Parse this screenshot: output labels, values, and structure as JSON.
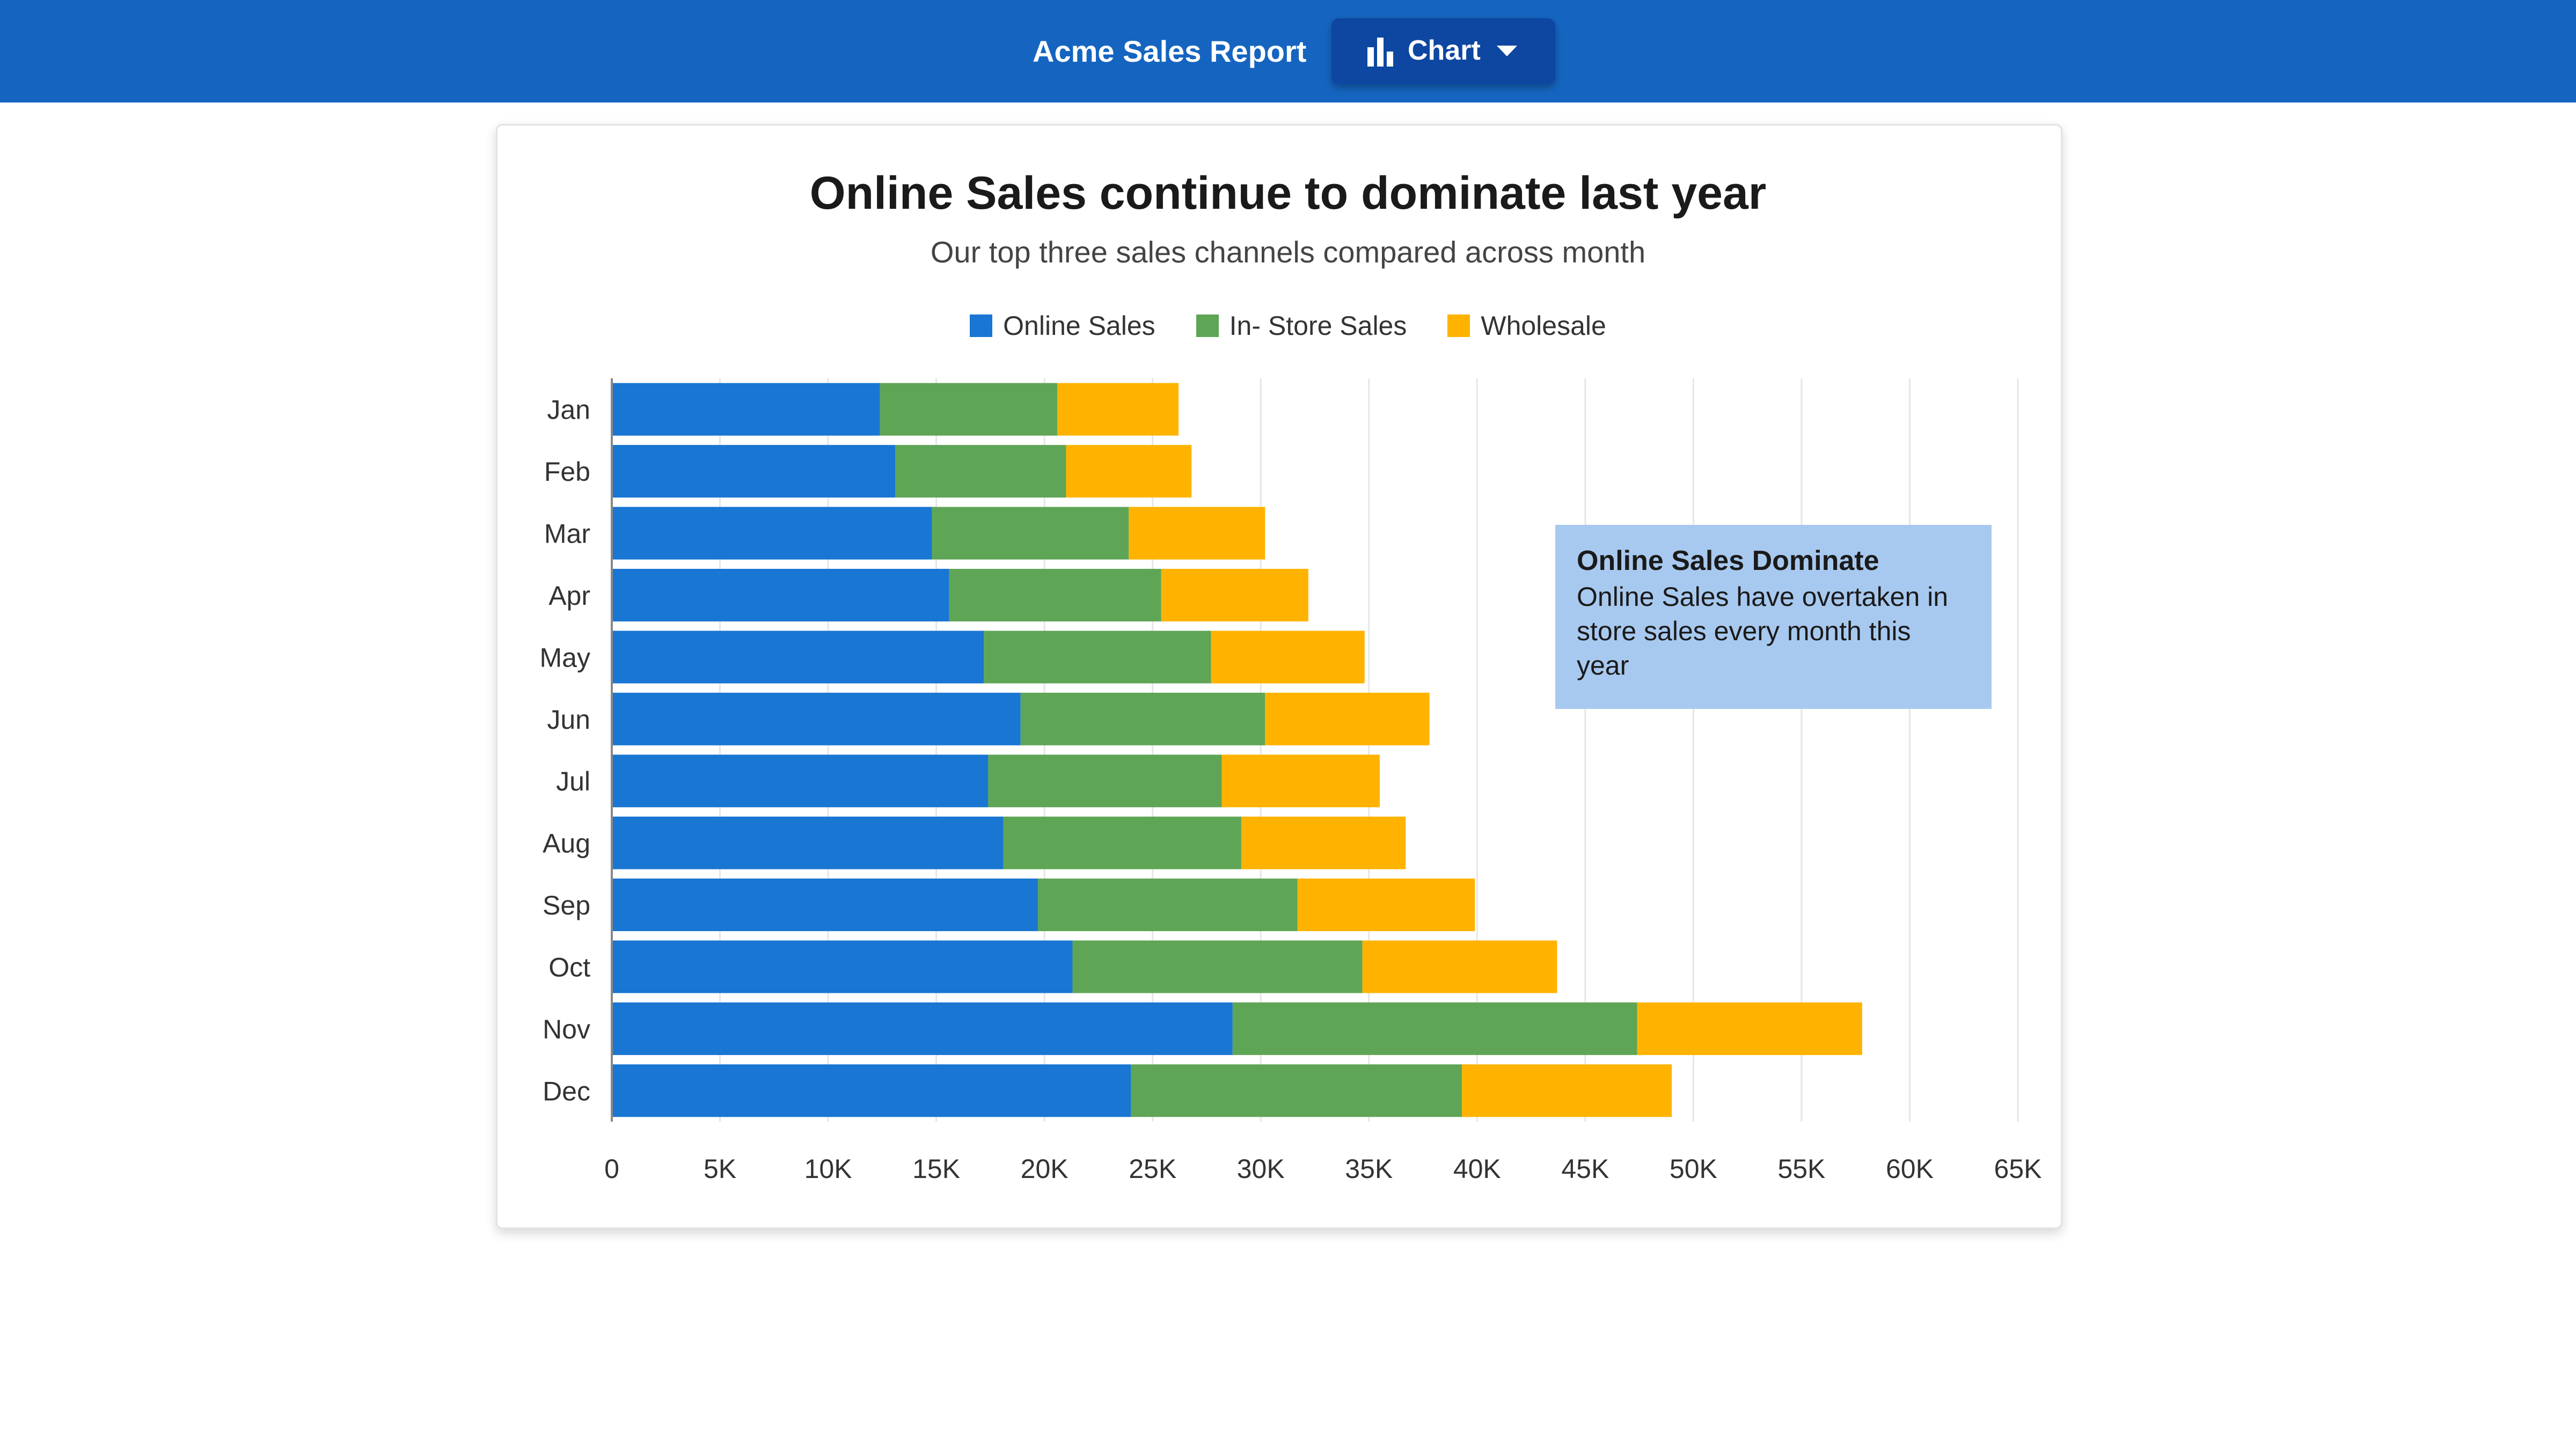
{
  "header": {
    "app_title": "Acme Sales Report",
    "chart_button_label": "Chart",
    "chart_button_icon": "bar-chart-icon",
    "dropdown_icon": "caret-down-icon"
  },
  "colors": {
    "header_bg": "#1565c0",
    "button_bg": "#0d47a1",
    "online": "#1976d2",
    "instore": "#5fa556",
    "wholesale": "#ffb300",
    "annotation_bg": "#a8c9ef"
  },
  "chart_data": {
    "type": "bar",
    "orientation": "horizontal",
    "stacked": true,
    "title": "Online Sales continue to dominate last year",
    "subtitle": "Our top three sales channels compared across month",
    "legend_position": "top",
    "grid": true,
    "categories": [
      "Jan",
      "Feb",
      "Mar",
      "Apr",
      "May",
      "Jun",
      "Jul",
      "Aug",
      "Sep",
      "Oct",
      "Nov",
      "Dec"
    ],
    "series": [
      {
        "name": "Online Sales",
        "color": "#1976d2",
        "values": [
          12400,
          13100,
          14800,
          15600,
          17200,
          18900,
          17400,
          18100,
          19700,
          21300,
          28700,
          24000
        ]
      },
      {
        "name": "In- Store Sales",
        "color": "#5fa556",
        "values": [
          8200,
          7900,
          9100,
          9800,
          10500,
          11300,
          10800,
          11000,
          12000,
          13400,
          18700,
          15300
        ]
      },
      {
        "name": "Wholesale",
        "color": "#ffb300",
        "values": [
          5600,
          5800,
          6300,
          6800,
          7100,
          7600,
          7300,
          7600,
          8200,
          9000,
          10400,
          9700
        ]
      }
    ],
    "xlim": [
      0,
      65000
    ],
    "x_ticks": [
      0,
      5000,
      10000,
      15000,
      20000,
      25000,
      30000,
      35000,
      40000,
      45000,
      50000,
      55000,
      60000,
      65000
    ],
    "x_tick_labels": [
      "0",
      "5K",
      "10K",
      "15K",
      "20K",
      "25K",
      "30K",
      "35K",
      "40K",
      "45K",
      "50K",
      "55K",
      "60K",
      "65K"
    ],
    "annotation": {
      "title": "Online Sales Dominate",
      "text": "Online Sales have overtaken in store sales every month this year"
    }
  }
}
